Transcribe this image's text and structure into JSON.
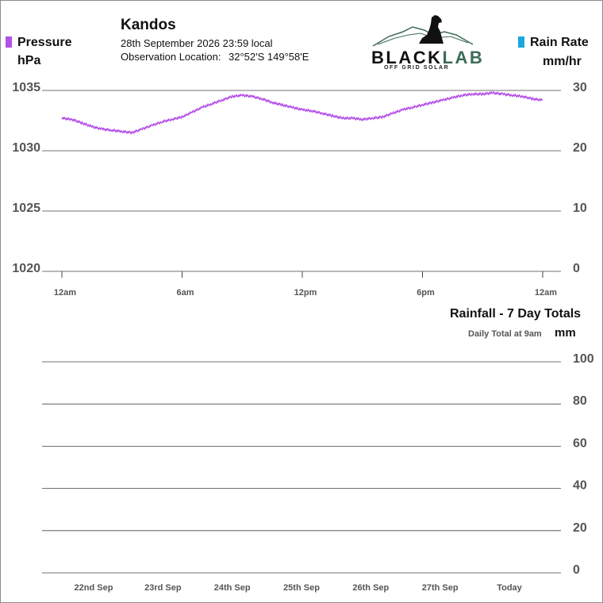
{
  "header": {
    "station": "Kandos",
    "datetime": "28th September 2026  23:59 local",
    "location_label": "Observation Location:",
    "location_value": "32°52'S 149°58'E"
  },
  "logo": {
    "brand_black": "BLACK",
    "brand_green": "LAB",
    "tagline": "OFF GRID SOLAR"
  },
  "legend": {
    "pressure_label": "Pressure",
    "pressure_unit": "hPa",
    "pressure_color": "#b450e6",
    "rain_label": "Rain Rate",
    "rain_unit": "mm/hr",
    "rain_color": "#1aa7e0"
  },
  "chart_data": [
    {
      "type": "line",
      "title": "",
      "series": [
        {
          "name": "Pressure",
          "color": "#b450e6",
          "x_hours": [
            0.0,
            0.5,
            1.0,
            1.5,
            2.0,
            2.5,
            3.0,
            3.5,
            4.0,
            4.5,
            5.0,
            5.5,
            6.0,
            6.5,
            7.0,
            7.5,
            8.0,
            8.5,
            9.0,
            9.5,
            10.0,
            10.5,
            11.0,
            11.5,
            12.0,
            12.5,
            13.0,
            13.5,
            14.0,
            14.5,
            15.0,
            15.5,
            16.0,
            16.5,
            17.0,
            17.5,
            18.0,
            18.5,
            19.0,
            19.5,
            20.0,
            20.5,
            21.0,
            21.5,
            22.0,
            22.5,
            23.0,
            23.5,
            24.0
          ],
          "values": [
            1032.7,
            1032.6,
            1032.3,
            1032.0,
            1031.8,
            1031.7,
            1031.6,
            1031.5,
            1031.8,
            1032.1,
            1032.4,
            1032.6,
            1032.8,
            1033.2,
            1033.6,
            1033.9,
            1034.2,
            1034.5,
            1034.6,
            1034.5,
            1034.3,
            1034.0,
            1033.8,
            1033.6,
            1033.4,
            1033.3,
            1033.1,
            1032.9,
            1032.7,
            1032.7,
            1032.6,
            1032.7,
            1032.8,
            1033.1,
            1033.4,
            1033.6,
            1033.8,
            1034.0,
            1034.2,
            1034.4,
            1034.6,
            1034.7,
            1034.7,
            1034.8,
            1034.7,
            1034.6,
            1034.5,
            1034.3,
            1034.2
          ]
        },
        {
          "name": "Rain Rate",
          "color": "#1aa7e0",
          "x_hours": [],
          "values": []
        }
      ],
      "x_tick_labels": [
        "12am",
        "6am",
        "12pm",
        "6pm",
        "12am"
      ],
      "x_ticks_hours": [
        0,
        6,
        12,
        18,
        24
      ],
      "xlim": [
        0,
        24
      ],
      "y_left": {
        "label": "Pressure hPa",
        "ticks": [
          1020,
          1025,
          1030,
          1035
        ],
        "ylim": [
          1020,
          1035
        ]
      },
      "y_right": {
        "label": "Rain Rate mm/hr",
        "ticks": [
          0,
          10,
          20,
          30
        ],
        "ylim": [
          0,
          30
        ]
      },
      "grid": true
    },
    {
      "type": "bar",
      "title": "Rainfall - 7 Day Totals",
      "subtitle": "Daily Total at 9am",
      "ylabel": "mm",
      "categories": [
        "22nd Sep",
        "23rd Sep",
        "24th Sep",
        "25th Sep",
        "26th Sep",
        "27th Sep",
        "Today"
      ],
      "values": [
        0,
        0,
        0,
        0,
        0,
        0,
        0
      ],
      "y_ticks": [
        0,
        20,
        40,
        60,
        80,
        100
      ],
      "ylim": [
        0,
        100
      ],
      "grid": true
    }
  ]
}
